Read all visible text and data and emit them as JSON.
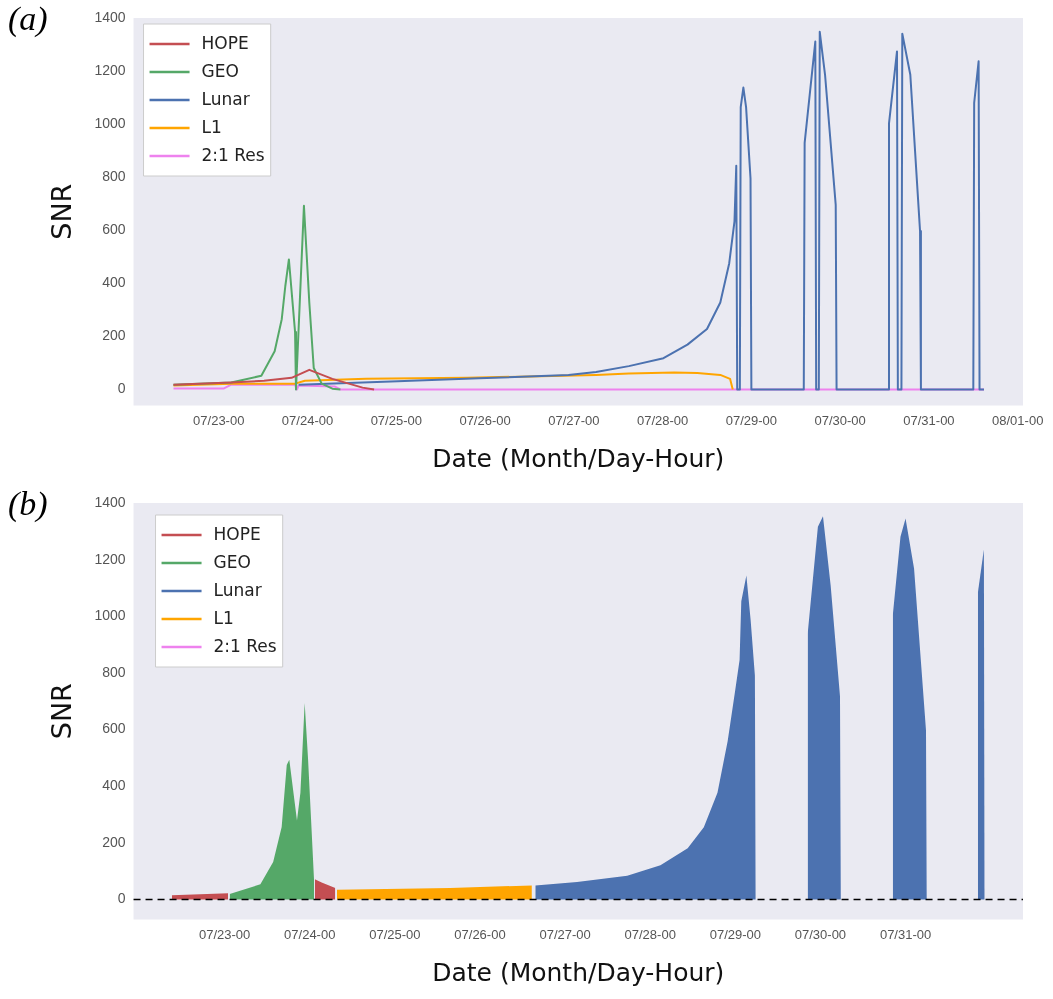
{
  "chart_data": [
    {
      "type": "line",
      "title": "(a)",
      "xlabel": "Date (Month/Day-Hour)",
      "ylabel": "SNR",
      "legend": "top left",
      "grid": false,
      "xlim": [
        "--07-22T00:58",
        "--08-01T01:26"
      ],
      "xticks": [
        {
          "value": "--07-23T00:00",
          "label": "07/23-00"
        },
        {
          "value": "--07-24T00:00",
          "label": "07/24-00"
        },
        {
          "value": "--07-25T00:00",
          "label": "07/25-00"
        },
        {
          "value": "--07-26T00:00",
          "label": "07/26-00"
        },
        {
          "value": "--07-27T00:00",
          "label": "07/27-00"
        },
        {
          "value": "--07-28T00:00",
          "label": "07/28-00"
        },
        {
          "value": "--07-29T00:00",
          "label": "07/29-00"
        },
        {
          "value": "--07-30T00:00",
          "label": "07/30-00"
        },
        {
          "value": "--07-31T00:00",
          "label": "07/31-00"
        },
        {
          "value": "--08-01T00:00",
          "label": "08/01-00"
        }
      ],
      "ylim": [
        -60,
        1400
      ],
      "yticks": [
        0,
        200,
        400,
        600,
        800,
        1000,
        1200,
        1400
      ],
      "series": [
        {
          "name": "HOPE",
          "color": "#c44e52",
          "x": [
            "--07-22T11:46",
            "--07-23T03:22",
            "--07-23T12:14",
            "--07-23T19:41",
            "--07-24T00:29",
            "--07-24T06:43",
            "--07-24T14:53",
            "--07-24T18:00"
          ],
          "values": [
            18,
            26,
            33,
            44,
            74,
            40,
            7,
            0
          ]
        },
        {
          "name": "GEO",
          "color": "#55a868",
          "x": [
            "--07-22T11:46",
            "--07-23T03:22",
            "--07-23T11:31",
            "--07-23T15:07",
            "--07-23T17:02",
            "--07-23T18:00",
            "--07-23T18:58",
            "--07-23T20:38",
            "--07-23T20:53",
            "--07-23T23:02",
            "--07-24T00:29",
            "--07-24T01:41",
            "--07-24T03:50",
            "--07-24T06:43",
            "--07-24T08:53"
          ],
          "values": [
            18,
            26,
            52,
            144,
            265,
            390,
            490,
            217,
            0,
            692,
            328,
            81,
            22,
            3,
            0
          ]
        },
        {
          "name": "Lunar",
          "color": "#4c72b0",
          "x": [
            "--07-23T21:36",
            "--07-24T22:34",
            "--07-25T22:19",
            "--07-26T22:34",
            "--07-27T06:00",
            "--07-27T14:53",
            "--07-28T00:14",
            "--07-28T06:43",
            "--07-28T12:00",
            "--07-28T15:36",
            "--07-28T18:00",
            "--07-28T19:26",
            "--07-28T19:55",
            "--07-28T20:10",
            "--07-28T20:53",
            "--07-28T21:07",
            "--07-28T21:50",
            "--07-28T22:34",
            "--07-28T23:46",
            "--07-29T00:00",
            "--07-29T14:10",
            "--07-29T14:24",
            "--07-29T17:17",
            "--07-29T17:31",
            "--07-29T18:14",
            "--07-29T18:29",
            "--07-29T19:55",
            "--07-29T22:48",
            "--07-29T23:02",
            "--07-30T12:58",
            "--07-30T13:12",
            "--07-30T15:22",
            "--07-30T15:36",
            "--07-30T16:34",
            "--07-30T16:48",
            "--07-30T18:58",
            "--07-30T21:36",
            "--07-30T21:50",
            "--07-31T12:00",
            "--07-31T12:14",
            "--07-31T13:26",
            "--07-31T13:41",
            "--07-31T14:53"
          ],
          "values": [
            18,
            30,
            42,
            55,
            66,
            88,
            118,
            169,
            228,
            328,
            475,
            634,
            843,
            0,
            0,
            1064,
            1138,
            1064,
            795,
            0,
            0,
            929,
            1311,
            0,
            0,
            1348,
            1186,
            696,
            0,
            0,
            1002,
            1274,
            0,
            0,
            1341,
            1186,
            597,
            0,
            0,
            1080,
            1237,
            0,
            0
          ]
        },
        {
          "name": "L1",
          "color": "#ffa500",
          "x": [
            "--07-22T11:46",
            "--07-23T03:22",
            "--07-23T20:38",
            "--07-23T23:17",
            "--07-24T15:50",
            "--07-25T19:12",
            "--07-27T06:00",
            "--07-27T14:53",
            "--07-28T03:07",
            "--07-28T09:22",
            "--07-28T15:36",
            "--07-28T18:14",
            "--07-28T18:58"
          ],
          "values": [
            15,
            22,
            22,
            33,
            40,
            44,
            55,
            60,
            64,
            62,
            55,
            40,
            0
          ]
        },
        {
          "name": "2:1 Res",
          "color": "#ee82ee",
          "x": [
            "--07-22T11:46",
            "--07-23T01:26",
            "--07-23T03:22",
            "--07-23T20:38",
            "--07-23T21:07",
            "--07-23T21:36",
            "--07-24T07:26",
            "--07-24T08:53",
            "--07-31T14:53"
          ],
          "values": [
            4,
            4,
            18,
            18,
            0,
            15,
            11,
            0,
            0
          ]
        }
      ]
    },
    {
      "type": "area",
      "title": "(b)",
      "xlabel": "Date (Month/Day-Hour)",
      "ylabel": "SNR",
      "legend": "top left",
      "grid": false,
      "xlim": [
        "--07-21T22:19",
        "--08-01T09:07"
      ],
      "xticks": [
        {
          "value": "--07-23T00:00",
          "label": "07/23-00"
        },
        {
          "value": "--07-24T00:00",
          "label": "07/24-00"
        },
        {
          "value": "--07-25T00:00",
          "label": "07/25-00"
        },
        {
          "value": "--07-26T00:00",
          "label": "07/26-00"
        },
        {
          "value": "--07-27T00:00",
          "label": "07/27-00"
        },
        {
          "value": "--07-28T00:00",
          "label": "07/28-00"
        },
        {
          "value": "--07-29T00:00",
          "label": "07/29-00"
        },
        {
          "value": "--07-30T00:00",
          "label": "07/30-00"
        },
        {
          "value": "--07-31T00:00",
          "label": "07/31-00"
        }
      ],
      "ylim": [
        -70,
        1400
      ],
      "yticks": [
        0,
        200,
        400,
        600,
        800,
        1000,
        1200,
        1400
      ],
      "ref_lines": [
        {
          "axis": "y",
          "value": 0,
          "label": null,
          "color": "#000000",
          "line_style": "dashed"
        }
      ],
      "series": [
        {
          "name": "HOPE",
          "color": "#c44e52",
          "x": [
            "--07-22T09:07",
            "--07-23T00:58",
            "--07-23T01:12",
            "--07-24T01:26",
            "--07-24T03:22",
            "--07-24T07:12"
          ],
          "values": [
            15,
            22,
            null,
            72,
            60,
            41
          ]
        },
        {
          "name": "GEO",
          "color": "#55a868",
          "x": [
            "--07-23T01:26",
            "--07-23T10:05",
            "--07-23T13:41",
            "--07-23T16:05",
            "--07-23T17:31",
            "--07-23T18:14",
            "--07-23T20:24",
            "--07-23T21:22",
            "--07-23T22:34",
            "--07-23T23:31",
            "--07-24T00:29",
            "--07-24T01:12"
          ],
          "values": [
            20,
            54,
            133,
            256,
            475,
            494,
            279,
            377,
            694,
            498,
            255,
            72
          ]
        },
        {
          "name": "Lunar",
          "color": "#4c72b0",
          "x": [
            "--07-26T15:36",
            "--07-27T03:22",
            "--07-27T17:31",
            "--07-28T02:53",
            "--07-28T10:34",
            "--07-28T15:07",
            "--07-28T18:58",
            "--07-28T21:50",
            "--07-29T00:00",
            "--07-29T01:12",
            "--07-29T01:41",
            "--07-29T03:07",
            "--07-29T04:19",
            "--07-29T05:31",
            "--07-29T05:46",
            "--07-29T06:00",
            "--07-29T20:24",
            "--07-29T23:17",
            "--07-30T00:43",
            "--07-30T02:53",
            "--07-30T05:31",
            "--07-30T05:46",
            "--07-30T06:00",
            "--07-30T20:24",
            "--07-30T22:34",
            "--07-31T00:00",
            "--07-31T02:24",
            "--07-31T05:46",
            "--07-31T06:00",
            "--07-31T06:14",
            "--07-31T20:24",
            "--07-31T22:05",
            "--07-31T22:19"
          ],
          "values": [
            50,
            62,
            84,
            121,
            181,
            255,
            377,
            559,
            742,
            846,
            1053,
            1144,
            987,
            791,
            0,
            null,
            938,
            1316,
            1353,
            1109,
            718,
            0,
            null,
            1004,
            1281,
            1345,
            1169,
            597,
            0,
            null,
            1084,
            1236,
            0
          ]
        },
        {
          "name": "L1",
          "color": "#ffa500",
          "x": [
            "--07-24T07:41",
            "--07-25T15:36",
            "--07-26T14:38"
          ],
          "values": [
            35,
            41,
            50
          ]
        },
        {
          "name": "2:1 Res",
          "color": "#ee82ee"
        }
      ]
    }
  ]
}
